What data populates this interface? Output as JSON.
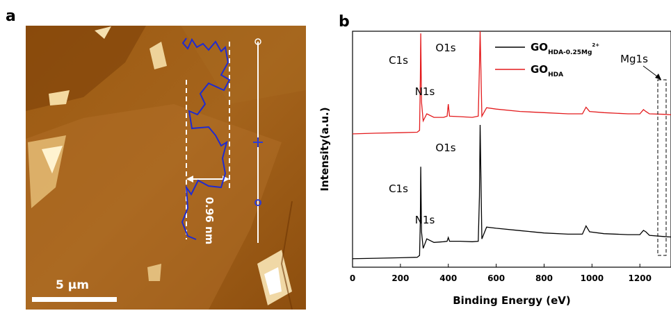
{
  "figure": {
    "panel_a": {
      "label": "a",
      "scale_bar": "5 µm",
      "height_label": "0.96 nm"
    },
    "panel_b_label": "b"
  },
  "chart_data": {
    "type": "line",
    "xlabel": "Binding Energy (eV)",
    "ylabel": "Intensity(a.u.)",
    "xlim": [
      0,
      1330
    ],
    "xticks": [
      0,
      200,
      400,
      600,
      800,
      1000,
      1200
    ],
    "ylim": [
      0,
      100
    ],
    "x": [
      0,
      100,
      200,
      270,
      280,
      283,
      285,
      288,
      295,
      310,
      340,
      380,
      395,
      400,
      405,
      450,
      500,
      525,
      530,
      533,
      540,
      560,
      600,
      700,
      800,
      900,
      960,
      975,
      990,
      1050,
      1150,
      1200,
      1215,
      1225,
      1240,
      1300,
      1330
    ],
    "series": [
      {
        "name": "GO",
        "name_subscript": "HDA-0.25Mg",
        "name_superscript": "2+",
        "color": "#000000",
        "values": [
          3.6,
          3.8,
          4,
          4.2,
          5,
          20,
          42.6,
          15,
          8,
          12,
          10.5,
          10.8,
          11,
          12.6,
          11,
          11,
          10.8,
          11,
          30,
          60.3,
          12,
          17,
          16.5,
          15.5,
          14.5,
          14,
          14,
          17.5,
          15,
          14.2,
          13.8,
          13.8,
          15.6,
          15,
          13.5,
          13,
          12.8
        ]
      },
      {
        "name": "GO",
        "name_subscript": "HDA",
        "color": "#e31a1c",
        "values": [
          56.5,
          56.8,
          57,
          57.2,
          58,
          80,
          99.1,
          70,
          62,
          65,
          63.5,
          63.5,
          64,
          69.1,
          64,
          63.8,
          63.5,
          64,
          85,
          100,
          64,
          67.6,
          67,
          66,
          65.5,
          65,
          65,
          67.8,
          66,
          65.5,
          65,
          65,
          66.8,
          66,
          65,
          64.8,
          64.6
        ]
      }
    ],
    "annotations": [
      "C1s",
      "N1s",
      "O1s",
      "C1s",
      "N1s",
      "O1s",
      "Mg1s"
    ]
  }
}
